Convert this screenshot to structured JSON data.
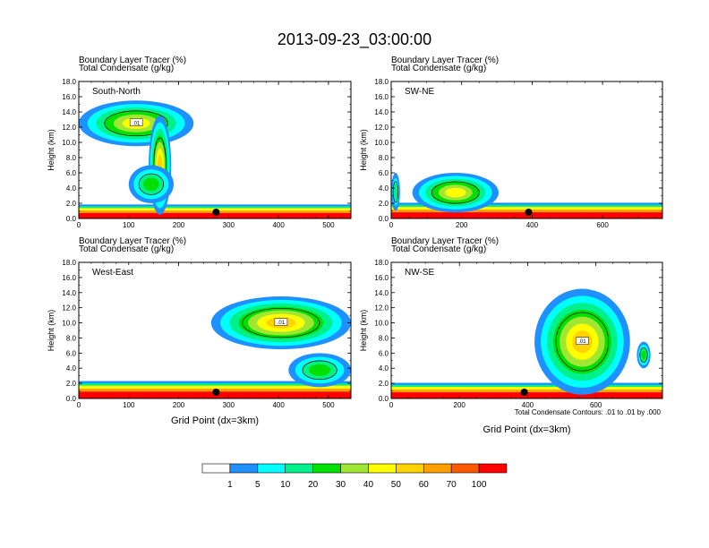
{
  "title": "2013-09-23_03:00:00",
  "colors": {
    "bands": [
      "#ffffff",
      "#1e90ff",
      "#00ffff",
      "#00f08c",
      "#00e000",
      "#a0e632",
      "#ffff00",
      "#ffd200",
      "#ffa000",
      "#ff5a00",
      "#ff0000"
    ],
    "contour": "#000000",
    "marker": "#000000"
  },
  "legend": {
    "labels": [
      "1",
      "5",
      "10",
      "20",
      "30",
      "40",
      "50",
      "60",
      "70",
      "100"
    ],
    "contour_note": "Total Condensate Contours: .01 to .01 by .000"
  },
  "chart_data": [
    {
      "type": "heatmap",
      "panel": "South-North",
      "subtitle_lines": [
        "Boundary Layer Tracer    (%)",
        "Total Condensate    (g/kg)"
      ],
      "xlim": [
        0,
        545
      ],
      "xticks": [
        0,
        100,
        200,
        300,
        400,
        500
      ],
      "ylim": [
        0,
        18
      ],
      "yticks": [
        "0.0",
        "2.0",
        "4.0",
        "6.0",
        "8.0",
        "10.0",
        "12.0",
        "14.0",
        "16.0",
        "18.0"
      ],
      "ylabel": "Height (km)",
      "xlabel": "",
      "marker_x": 275,
      "contour_label": ".01",
      "features": [
        {
          "kind": "boundary_layer",
          "x0": 0,
          "x1": 545,
          "h": 1.6
        },
        {
          "kind": "cloud",
          "x0": 0,
          "x1": 230,
          "y0": 9.5,
          "y1": 15.5,
          "core": 40
        },
        {
          "kind": "tower",
          "x0": 140,
          "x1": 185,
          "y0": 0.5,
          "y1": 13.5,
          "core": 50
        },
        {
          "kind": "cloud",
          "x0": 100,
          "x1": 190,
          "y0": 2.0,
          "y1": 7.0,
          "core": 20
        }
      ]
    },
    {
      "type": "heatmap",
      "panel": "SW-NE",
      "subtitle_lines": [
        "Boundary Layer Tracer    (%)",
        "Total Condensate    (g/kg)"
      ],
      "xlim": [
        0,
        770
      ],
      "xticks": [
        0,
        200,
        400,
        600
      ],
      "ylim": [
        0,
        18
      ],
      "yticks": [
        "0.0",
        "2.0",
        "4.0",
        "6.0",
        "8.0",
        "10.0",
        "12.0",
        "14.0",
        "16.0",
        "18.0"
      ],
      "ylabel": "Height (km)",
      "xlabel": "",
      "marker_x": 390,
      "contour_label": "",
      "features": [
        {
          "kind": "boundary_layer",
          "x0": 0,
          "x1": 770,
          "h": 1.8
        },
        {
          "kind": "cloud",
          "x0": 60,
          "x1": 305,
          "y0": 0.8,
          "y1": 6.0,
          "core": 40
        },
        {
          "kind": "cloud",
          "x0": 0,
          "x1": 25,
          "y0": 1.0,
          "y1": 6.0,
          "core": 10
        }
      ]
    },
    {
      "type": "heatmap",
      "panel": "West-East",
      "subtitle_lines": [
        "Boundary Layer Tracer    (%)",
        "Total Condensate    (g/kg)"
      ],
      "xlim": [
        0,
        545
      ],
      "xticks": [
        0,
        100,
        200,
        300,
        400,
        500
      ],
      "ylim": [
        0,
        18
      ],
      "yticks": [
        "0.0",
        "2.0",
        "4.0",
        "6.0",
        "8.0",
        "10.0",
        "12.0",
        "14.0",
        "16.0",
        "18.0"
      ],
      "ylabel": "Height (km)",
      "xlabel": "Grid Point (dx=3km)",
      "marker_x": 275,
      "contour_label": ".01",
      "features": [
        {
          "kind": "boundary_layer",
          "x0": 0,
          "x1": 545,
          "h": 2.0
        },
        {
          "kind": "cloud",
          "x0": 265,
          "x1": 545,
          "y0": 6.5,
          "y1": 13.5,
          "core": 50
        },
        {
          "kind": "cloud",
          "x0": 420,
          "x1": 545,
          "y0": 1.5,
          "y1": 6.0,
          "core": 20
        }
      ]
    },
    {
      "type": "heatmap",
      "panel": "NW-SE",
      "subtitle_lines": [
        "Boundary Layer Tracer    (%)",
        "Total Condensate    (g/kg)"
      ],
      "xlim": [
        0,
        795
      ],
      "xticks": [
        0,
        200,
        400,
        600
      ],
      "ylim": [
        0,
        18
      ],
      "yticks": [
        "0.0",
        "2.0",
        "4.0",
        "6.0",
        "8.0",
        "10.0",
        "12.0",
        "14.0",
        "16.0",
        "18.0"
      ],
      "ylabel": "Height (km)",
      "xlabel": "Grid Point (dx=3km)",
      "marker_x": 390,
      "contour_label": ".01",
      "features": [
        {
          "kind": "boundary_layer",
          "x0": 0,
          "x1": 795,
          "h": 1.8
        },
        {
          "kind": "cloud",
          "x0": 420,
          "x1": 700,
          "y0": 0.5,
          "y1": 14.5,
          "core": 50
        },
        {
          "kind": "cloud",
          "x0": 720,
          "x1": 760,
          "y0": 4.0,
          "y1": 7.5,
          "core": 20
        }
      ]
    }
  ]
}
